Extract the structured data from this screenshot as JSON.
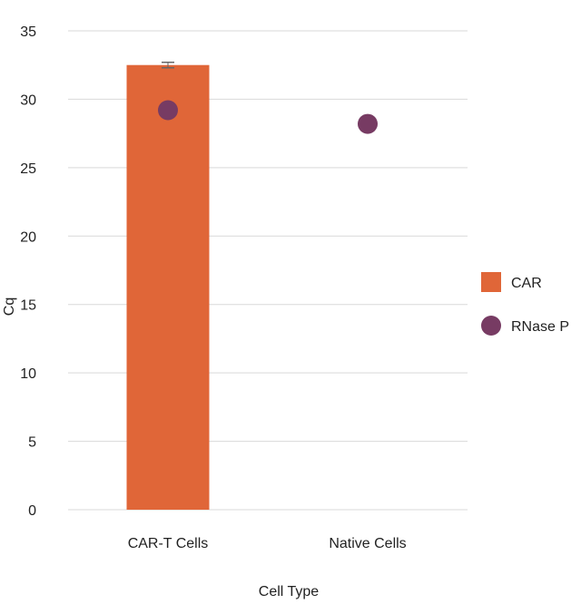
{
  "chart_data": {
    "type": "bar",
    "title": "",
    "xlabel": "Cell Type",
    "ylabel": "Cq",
    "ylim": [
      0,
      35
    ],
    "yticks": [
      0,
      5,
      10,
      15,
      20,
      25,
      30,
      35
    ],
    "grid": true,
    "legend_placement": "right",
    "categories": [
      "CAR-T Cells",
      "Native Cells"
    ],
    "series": [
      {
        "name": "CAR",
        "kind": "bar",
        "color": "#E06638",
        "values": [
          32.5,
          null
        ],
        "error": [
          0.2,
          null
        ]
      },
      {
        "name": "RNase P",
        "kind": "point",
        "color": "#773B63",
        "values": [
          29.2,
          28.2
        ]
      }
    ]
  }
}
